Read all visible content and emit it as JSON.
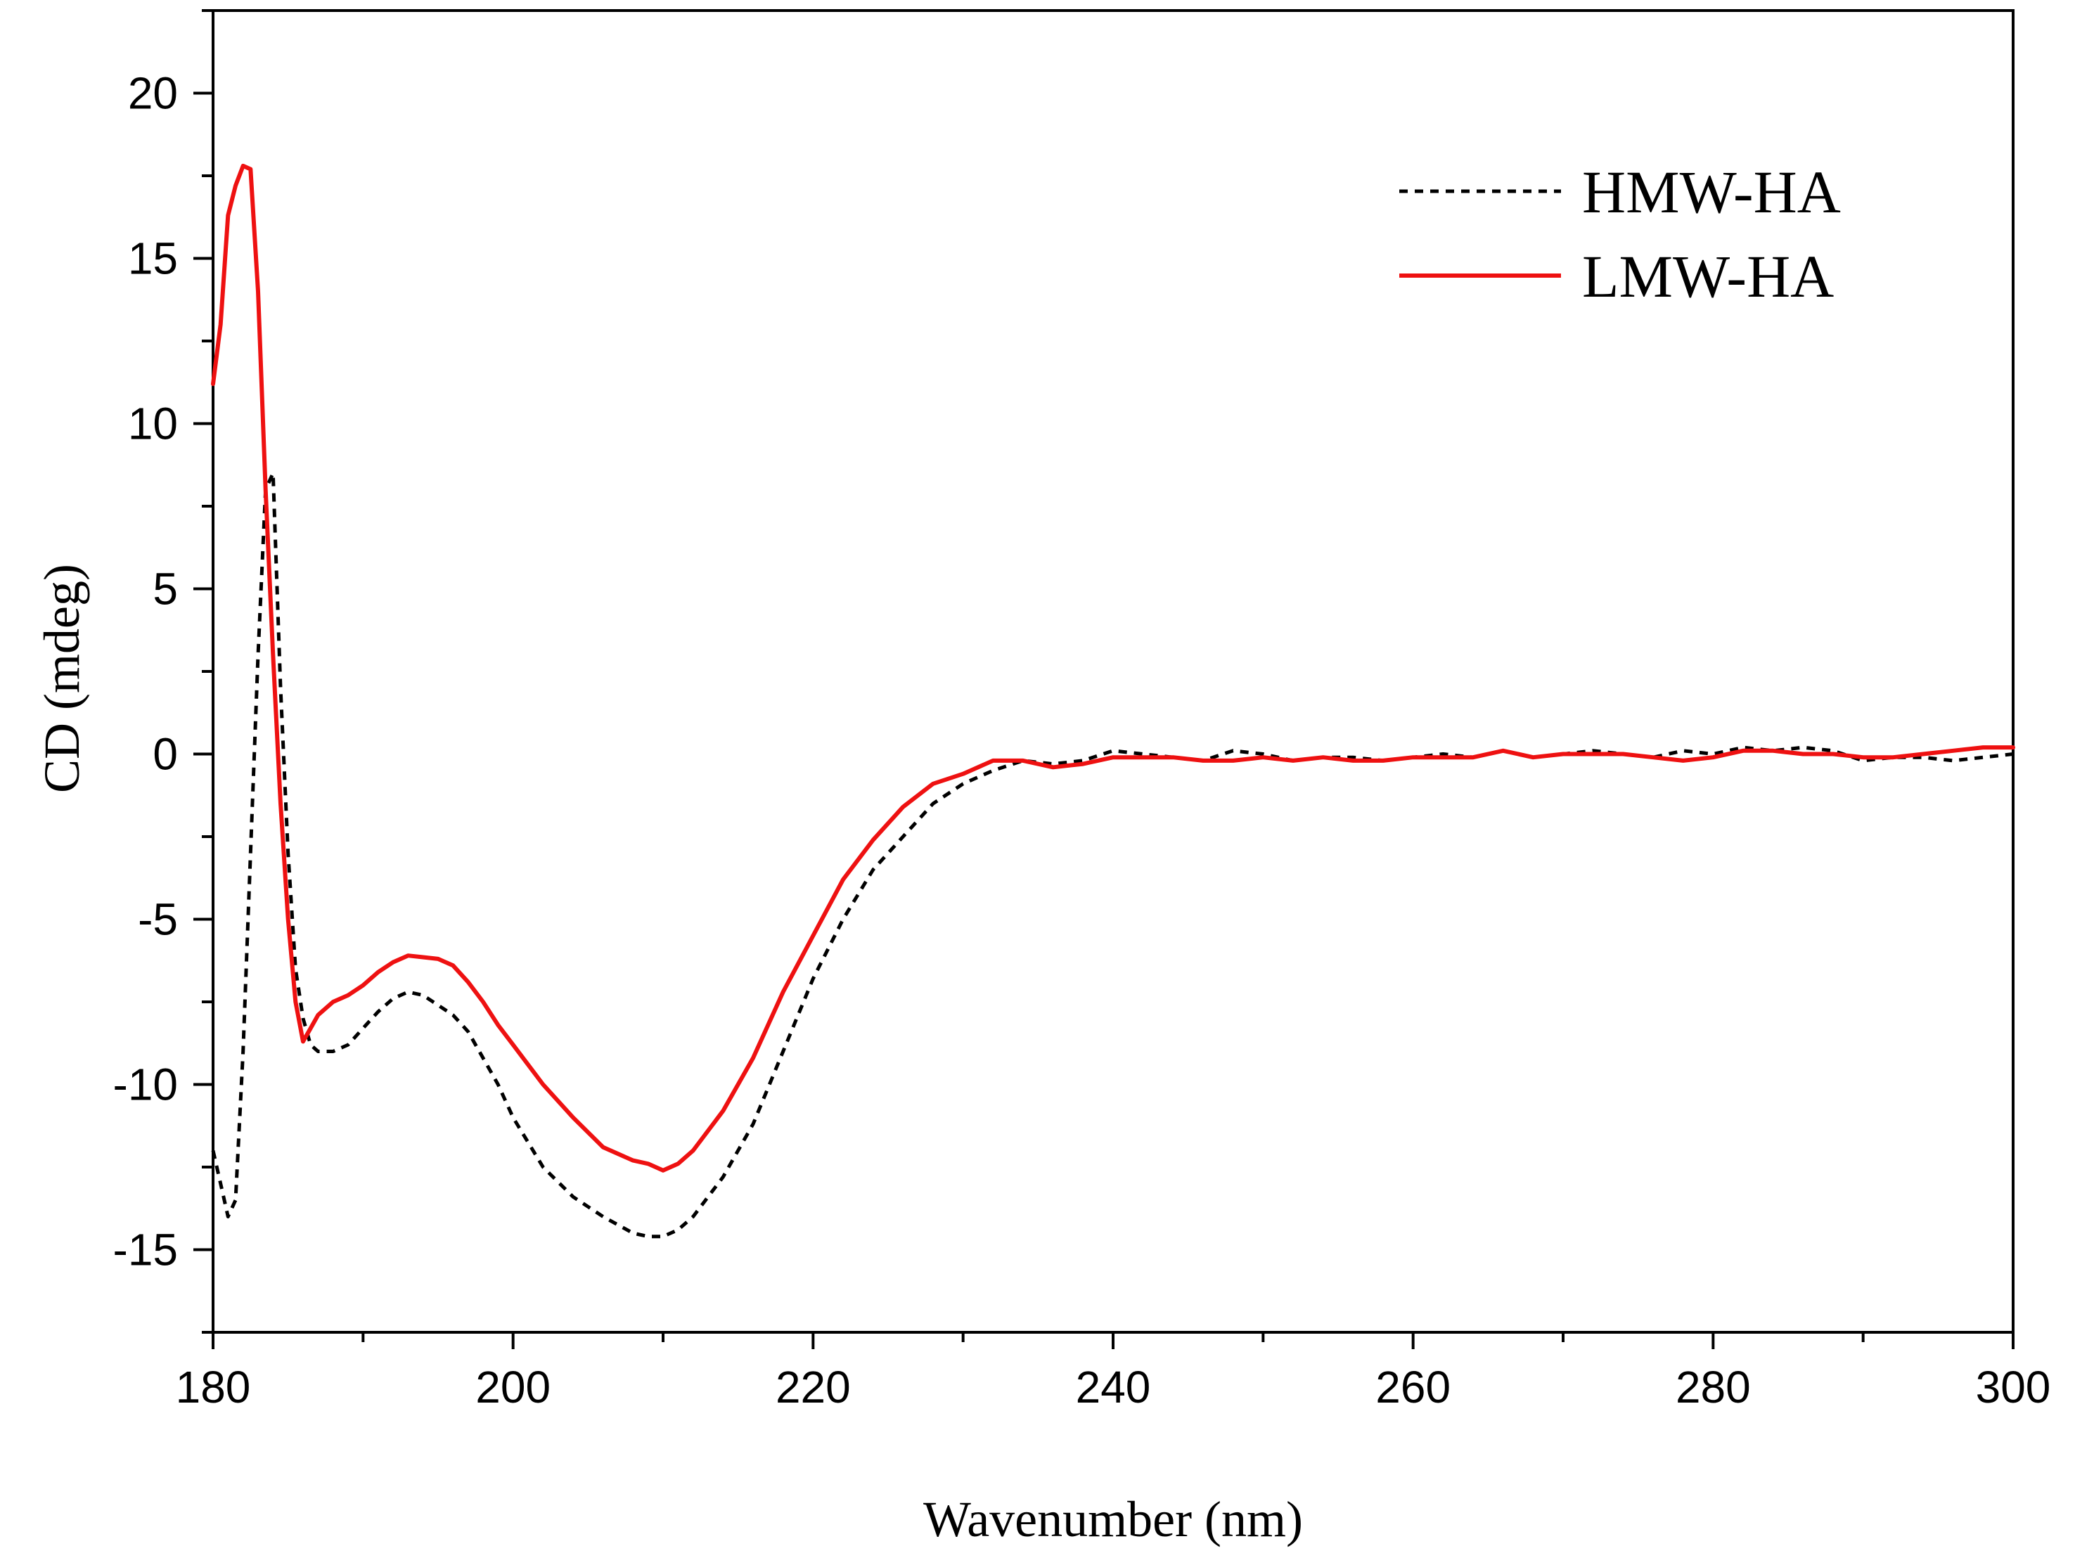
{
  "chart_data": {
    "type": "line",
    "title": "",
    "xlabel": "Wavenumber (nm)",
    "ylabel": "CD (mdeg)",
    "xlim": [
      180,
      300
    ],
    "ylim": [
      -17.5,
      22.5
    ],
    "xticks": [
      180,
      200,
      220,
      240,
      260,
      280,
      300
    ],
    "xtick_labels": [
      "180",
      "200",
      "220",
      "240",
      "260",
      "280",
      "300"
    ],
    "yticks": [
      -15,
      -10,
      -5,
      0,
      5,
      10,
      15,
      20
    ],
    "ytick_labels": [
      "-15",
      "-10",
      "-5",
      "0",
      "5",
      "10",
      "15",
      "20"
    ],
    "grid": false,
    "legend": "top-right",
    "series": [
      {
        "name": "HMW-HA",
        "color": "#000000",
        "style": "dotted",
        "x": [
          180,
          180.5,
          181,
          181.5,
          182,
          182.5,
          183,
          183.5,
          184,
          184.5,
          185,
          185.5,
          186,
          186.5,
          187,
          188,
          189,
          190,
          191,
          192,
          193,
          194,
          195,
          196,
          197,
          198,
          199,
          200,
          202,
          204,
          206,
          208,
          209,
          210,
          211,
          212,
          214,
          216,
          218,
          220,
          222,
          224,
          226,
          228,
          230,
          232,
          234,
          236,
          238,
          240,
          242,
          244,
          246,
          248,
          250,
          252,
          254,
          256,
          258,
          260,
          262,
          264,
          266,
          268,
          270,
          272,
          274,
          276,
          278,
          280,
          282,
          284,
          286,
          288,
          290,
          292,
          294,
          296,
          298,
          300
        ],
        "y": [
          -12,
          -13,
          -14,
          -13.5,
          -9,
          -3,
          3,
          8,
          8.5,
          2,
          -3,
          -6.5,
          -8,
          -8.8,
          -9,
          -9,
          -8.8,
          -8.3,
          -7.8,
          -7.4,
          -7.2,
          -7.3,
          -7.6,
          -7.9,
          -8.4,
          -9.2,
          -10,
          -11,
          -12.5,
          -13.4,
          -14,
          -14.5,
          -14.6,
          -14.6,
          -14.4,
          -14,
          -12.8,
          -11.2,
          -9,
          -6.8,
          -5,
          -3.5,
          -2.5,
          -1.5,
          -0.9,
          -0.5,
          -0.2,
          -0.3,
          -0.2,
          0.1,
          0,
          -0.1,
          -0.2,
          0.1,
          0,
          -0.2,
          -0.1,
          -0.1,
          -0.2,
          -0.1,
          0,
          -0.1,
          0.1,
          -0.1,
          0,
          0.1,
          0,
          -0.1,
          0.1,
          0,
          0.2,
          0.1,
          0.2,
          0.1,
          -0.2,
          -0.1,
          -0.1,
          -0.2,
          -0.1,
          0
        ]
      },
      {
        "name": "LMW-HA",
        "color": "#ee1111",
        "style": "solid",
        "x": [
          180,
          180.5,
          181,
          181.5,
          182,
          182.5,
          183,
          183.5,
          184,
          184.5,
          185,
          185.5,
          186,
          186.5,
          187,
          188,
          189,
          190,
          191,
          192,
          193,
          194,
          195,
          196,
          197,
          198,
          199,
          200,
          202,
          204,
          206,
          208,
          209,
          210,
          211,
          212,
          214,
          216,
          218,
          220,
          222,
          224,
          226,
          228,
          230,
          232,
          234,
          236,
          238,
          240,
          242,
          244,
          246,
          248,
          250,
          252,
          254,
          256,
          258,
          260,
          262,
          264,
          266,
          268,
          270,
          272,
          274,
          276,
          278,
          280,
          282,
          284,
          286,
          288,
          290,
          292,
          294,
          296,
          298,
          300
        ],
        "y": [
          11.2,
          13,
          16.3,
          17.2,
          17.8,
          17.7,
          14,
          8,
          3,
          -1.5,
          -5,
          -7.5,
          -8.7,
          -8.3,
          -7.9,
          -7.5,
          -7.3,
          -7,
          -6.6,
          -6.3,
          -6.1,
          -6.15,
          -6.2,
          -6.4,
          -6.9,
          -7.5,
          -8.2,
          -8.8,
          -10,
          -11,
          -11.9,
          -12.3,
          -12.4,
          -12.6,
          -12.4,
          -12,
          -10.8,
          -9.2,
          -7.2,
          -5.5,
          -3.8,
          -2.6,
          -1.6,
          -0.9,
          -0.6,
          -0.2,
          -0.2,
          -0.4,
          -0.3,
          -0.1,
          -0.1,
          -0.1,
          -0.2,
          -0.2,
          -0.1,
          -0.2,
          -0.1,
          -0.2,
          -0.2,
          -0.1,
          -0.1,
          -0.1,
          0.1,
          -0.1,
          0,
          0,
          0,
          -0.1,
          -0.2,
          -0.1,
          0.1,
          0.1,
          0,
          0,
          -0.1,
          -0.1,
          0,
          0.1,
          0.2,
          0.2
        ]
      }
    ]
  }
}
